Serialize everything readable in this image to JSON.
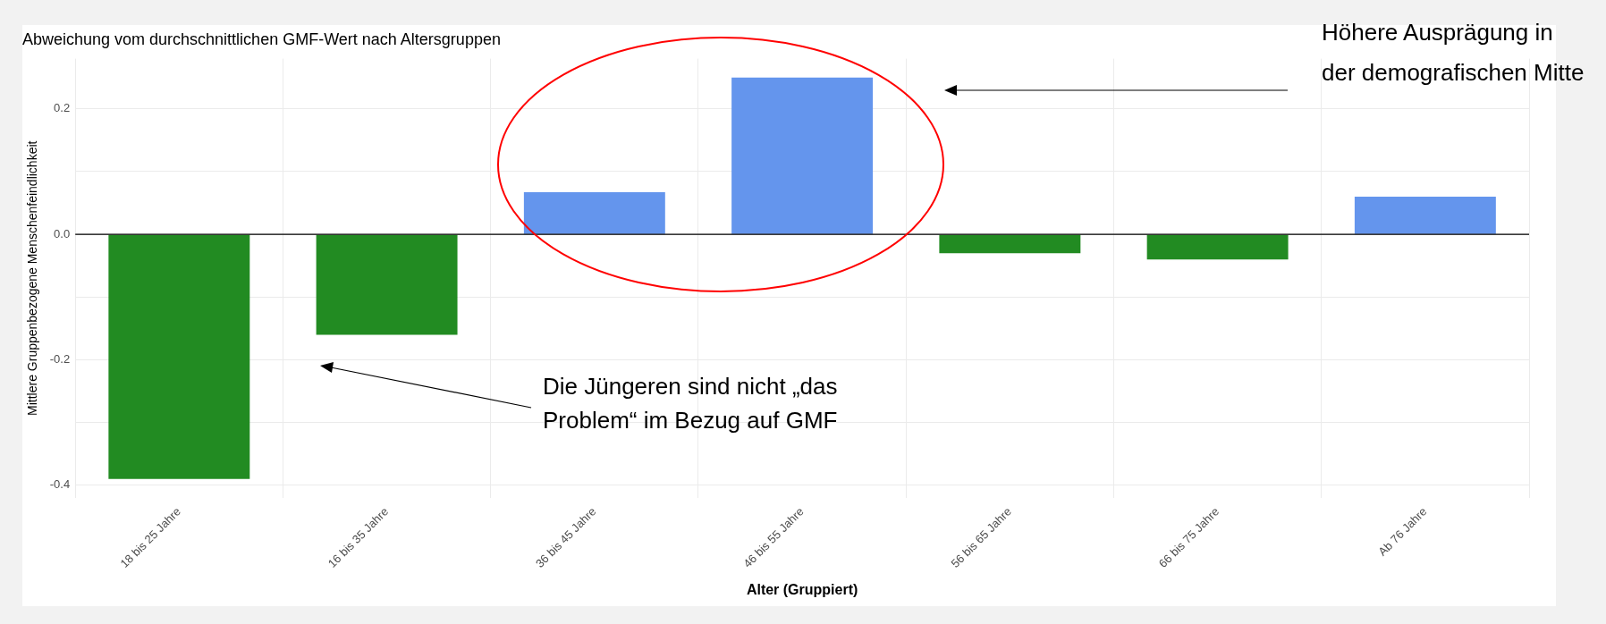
{
  "chart_data": {
    "type": "bar",
    "title": "Abweichung vom durchschnittlichen GMF-Wert nach Altersgruppen",
    "xlabel": "Alter (Gruppiert)",
    "ylabel": "Mittlere Gruppenbezogene Menschenfeindlichkeit",
    "categories": [
      "18 bis 25 Jahre",
      "16 bis 35 Jahre",
      "36 bis 45 Jahre",
      "46 bis 55 Jahre",
      "56 bis 65 Jahre",
      "66 bis 75 Jahre",
      "Ab 76 Jahre"
    ],
    "values": [
      -0.39,
      -0.16,
      0.067,
      0.25,
      -0.03,
      -0.04,
      0.06
    ],
    "colors": [
      "#228b22",
      "#228b22",
      "#6495ed",
      "#6495ed",
      "#228b22",
      "#228b22",
      "#6495ed"
    ],
    "ylim": [
      -0.42,
      0.28
    ],
    "yticks": [
      -0.4,
      -0.2,
      {
        "value": 0,
        "label": "0.0"
      },
      0.2
    ],
    "ref_lines": [
      {
        "axis": "y",
        "value": 0,
        "color": "#000000"
      }
    ],
    "grid": true,
    "legend": false,
    "annotations": [
      "Höhere Ausprägung in der demografischen Mitte",
      "Die Jüngeren sind nicht „das Problem“ im Bezug auf GMF"
    ]
  }
}
